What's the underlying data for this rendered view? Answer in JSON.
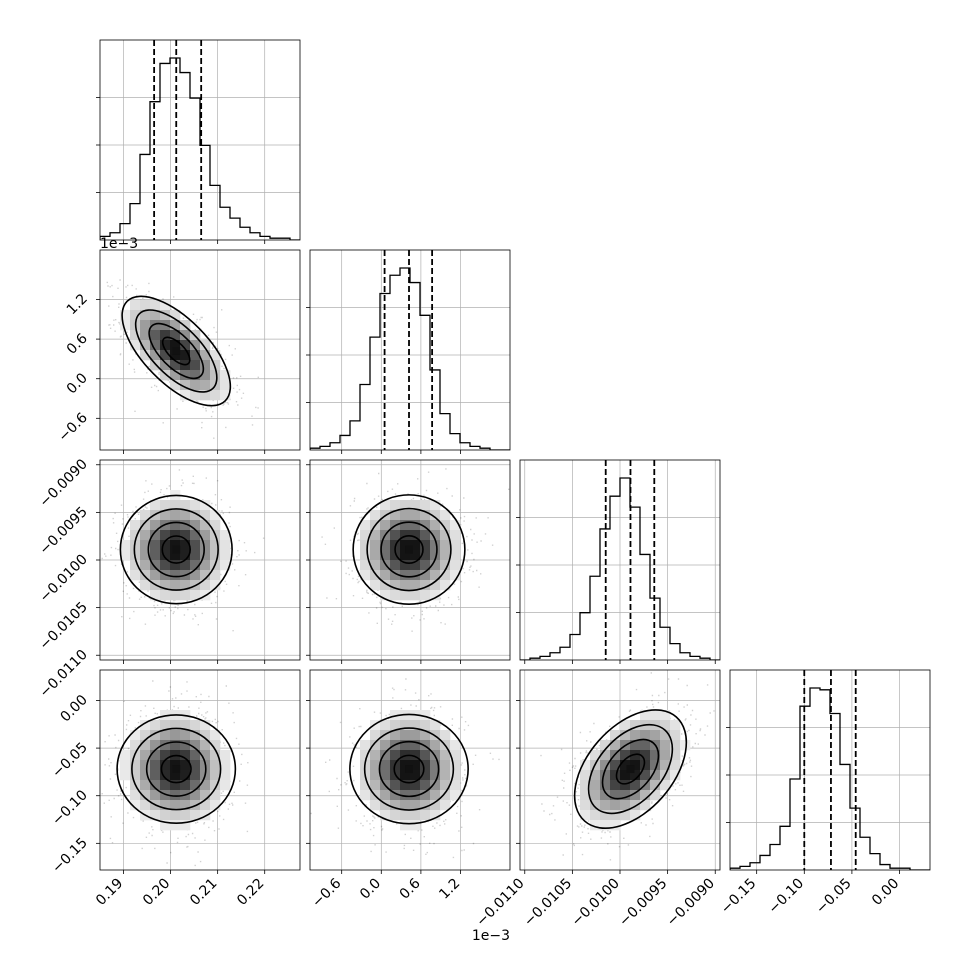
{
  "chart_data": {
    "type": "corner",
    "title": "",
    "parameters": [
      "",
      "",
      "",
      ""
    ],
    "quantiles": [
      [
        0.1965,
        0.2012,
        0.2065
      ],
      [
        5e-05,
        0.00042,
        0.00077
      ],
      [
        -0.01015,
        -0.00989,
        -0.00964
      ],
      [
        -0.1,
        -0.072,
        -0.046
      ]
    ],
    "ranges": [
      [
        0.185,
        0.2275
      ],
      [
        -0.00108,
        0.00195
      ],
      [
        -0.01105,
        -0.00895
      ],
      [
        -0.178,
        0.032
      ]
    ],
    "tick_values": [
      [
        0.19,
        0.2,
        0.21,
        0.22
      ],
      [
        -0.0006,
        0.0,
        0.0006,
        0.0012
      ],
      [
        -0.011,
        -0.0105,
        -0.01,
        -0.0095,
        -0.009
      ],
      [
        -0.15,
        -0.1,
        -0.05,
        0.0
      ]
    ],
    "tick_labels": [
      [
        "0.19",
        "0.20",
        "0.21",
        "0.22"
      ],
      [
        "−0.6",
        "0.0",
        "0.6",
        "1.2"
      ],
      [
        "−0.0110",
        "−0.0105",
        "−0.0100",
        "−0.0095",
        "−0.0090"
      ],
      [
        "−0.15",
        "−0.10",
        "−0.05",
        "0.00"
      ]
    ],
    "offset_texts": [
      "",
      "1e−3",
      "",
      ""
    ],
    "histograms": [
      {
        "counts": [
          2,
          4,
          9,
          20,
          47,
          76,
          97,
          100,
          92,
          78,
          52,
          30,
          18,
          12,
          7,
          4,
          2,
          1,
          1,
          0
        ]
      },
      {
        "counts": [
          1,
          2,
          4,
          8,
          16,
          36,
          62,
          86,
          96,
          100,
          92,
          74,
          44,
          20,
          9,
          4,
          2,
          1,
          0,
          0
        ]
      },
      {
        "counts": [
          0,
          1,
          2,
          4,
          7,
          14,
          26,
          46,
          72,
          90,
          100,
          84,
          58,
          34,
          18,
          9,
          4,
          2,
          1,
          0
        ]
      },
      {
        "counts": [
          1,
          2,
          4,
          8,
          14,
          24,
          50,
          90,
          100,
          99,
          86,
          58,
          34,
          18,
          9,
          3,
          1,
          1,
          0,
          0
        ]
      }
    ],
    "correlations": [
      [
        1,
        -0.65,
        0,
        0
      ],
      [
        -0.65,
        1,
        0,
        0
      ],
      [
        0,
        0,
        1,
        0.45
      ],
      [
        0,
        0,
        0.45,
        1
      ]
    ],
    "grid": true,
    "colors": {
      "line": "#000000",
      "points": "#000000",
      "background": "#ffffff",
      "grid": "#b0b0b0"
    }
  }
}
